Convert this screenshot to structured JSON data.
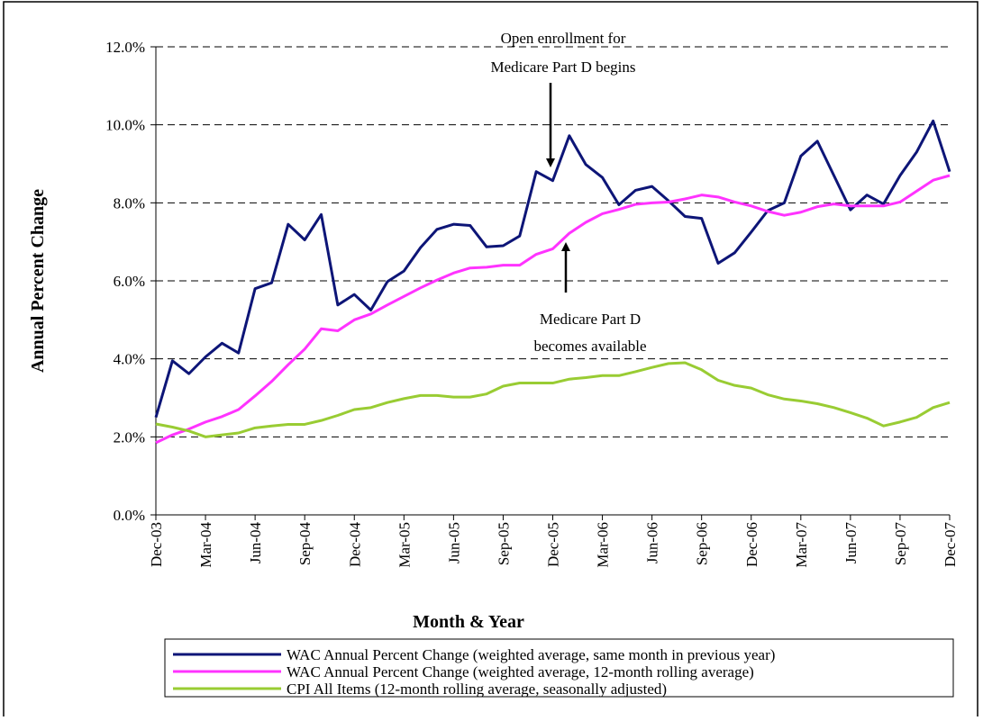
{
  "chart_data": {
    "type": "line",
    "y_axis_label": "Annual Percent Change",
    "x_axis_label": "Month & Year",
    "categories": [
      "Dec-03",
      null,
      null,
      "Mar-04",
      null,
      null,
      "Jun-04",
      null,
      null,
      "Sep-04",
      null,
      null,
      "Dec-04",
      null,
      null,
      "Mar-05",
      null,
      null,
      "Jun-05",
      null,
      null,
      "Sep-05",
      null,
      null,
      "Dec-05",
      null,
      null,
      "Mar-06",
      null,
      null,
      "Jun-06",
      null,
      null,
      "Sep-06",
      null,
      null,
      "Dec-06",
      null,
      null,
      "Mar-07",
      null,
      null,
      "Jun-07",
      null,
      null,
      "Sep-07",
      null,
      null,
      "Dec-07"
    ],
    "series": [
      {
        "name": "WAC Annual Percent Change (weighted average, same month in previous year)",
        "color": "#0d1577",
        "values": [
          2.5,
          3.95,
          3.62,
          4.05,
          4.4,
          4.15,
          5.8,
          5.95,
          7.45,
          7.05,
          7.7,
          5.38,
          5.65,
          5.25,
          5.98,
          6.25,
          6.85,
          7.32,
          7.45,
          7.42,
          6.87,
          6.9,
          7.15,
          8.8,
          8.57,
          9.72,
          8.98,
          8.65,
          7.95,
          8.32,
          8.42,
          8.05,
          7.65,
          7.6,
          6.45,
          6.72,
          7.25,
          7.8,
          8.0,
          9.2,
          9.58,
          8.7,
          7.82,
          8.2,
          7.97,
          8.7,
          9.3,
          10.1,
          8.8
        ]
      },
      {
        "name": "WAC Annual Percent Change (weighted average, 12-month rolling average)",
        "color": "#ff33ff",
        "values": [
          1.85,
          2.05,
          2.2,
          2.38,
          2.52,
          2.7,
          3.05,
          3.42,
          3.85,
          4.25,
          4.77,
          4.72,
          5.0,
          5.15,
          5.38,
          5.6,
          5.82,
          6.02,
          6.2,
          6.33,
          6.35,
          6.4,
          6.4,
          6.68,
          6.82,
          7.22,
          7.5,
          7.72,
          7.83,
          7.96,
          8.0,
          8.02,
          8.1,
          8.2,
          8.15,
          8.02,
          7.92,
          7.78,
          7.68,
          7.76,
          7.9,
          7.97,
          7.92,
          7.92,
          7.92,
          8.02,
          8.3,
          8.58,
          8.7
        ]
      },
      {
        "name": "CPI All Items (12-month rolling average, seasonally adjusted)",
        "color": "#99cc33",
        "values": [
          2.33,
          2.25,
          2.15,
          2.0,
          2.05,
          2.1,
          2.23,
          2.28,
          2.32,
          2.32,
          2.42,
          2.55,
          2.7,
          2.75,
          2.88,
          2.98,
          3.06,
          3.06,
          3.02,
          3.02,
          3.1,
          3.3,
          3.38,
          3.38,
          3.38,
          3.48,
          3.52,
          3.57,
          3.57,
          3.67,
          3.78,
          3.88,
          3.9,
          3.72,
          3.45,
          3.32,
          3.25,
          3.08,
          2.97,
          2.92,
          2.85,
          2.75,
          2.62,
          2.48,
          2.28,
          2.38,
          2.5,
          2.75,
          2.88
        ]
      }
    ],
    "ylim": [
      0,
      12
    ],
    "yticks": [
      {
        "value": 0,
        "label": "0.0%"
      },
      {
        "value": 2,
        "label": "2.0%"
      },
      {
        "value": 4,
        "label": "4.0%"
      },
      {
        "value": 6,
        "label": "6.0%"
      },
      {
        "value": 8,
        "label": "8.0%"
      },
      {
        "value": 10,
        "label": "10.0%"
      },
      {
        "value": 12,
        "label": "12.0%"
      }
    ],
    "grid": true,
    "legend": "bottom",
    "annotations": [
      {
        "lines": [
          "Open enrollment for",
          "Medicare Part D begins"
        ]
      },
      {
        "lines": [
          "Medicare Part D",
          "becomes available"
        ]
      }
    ]
  }
}
